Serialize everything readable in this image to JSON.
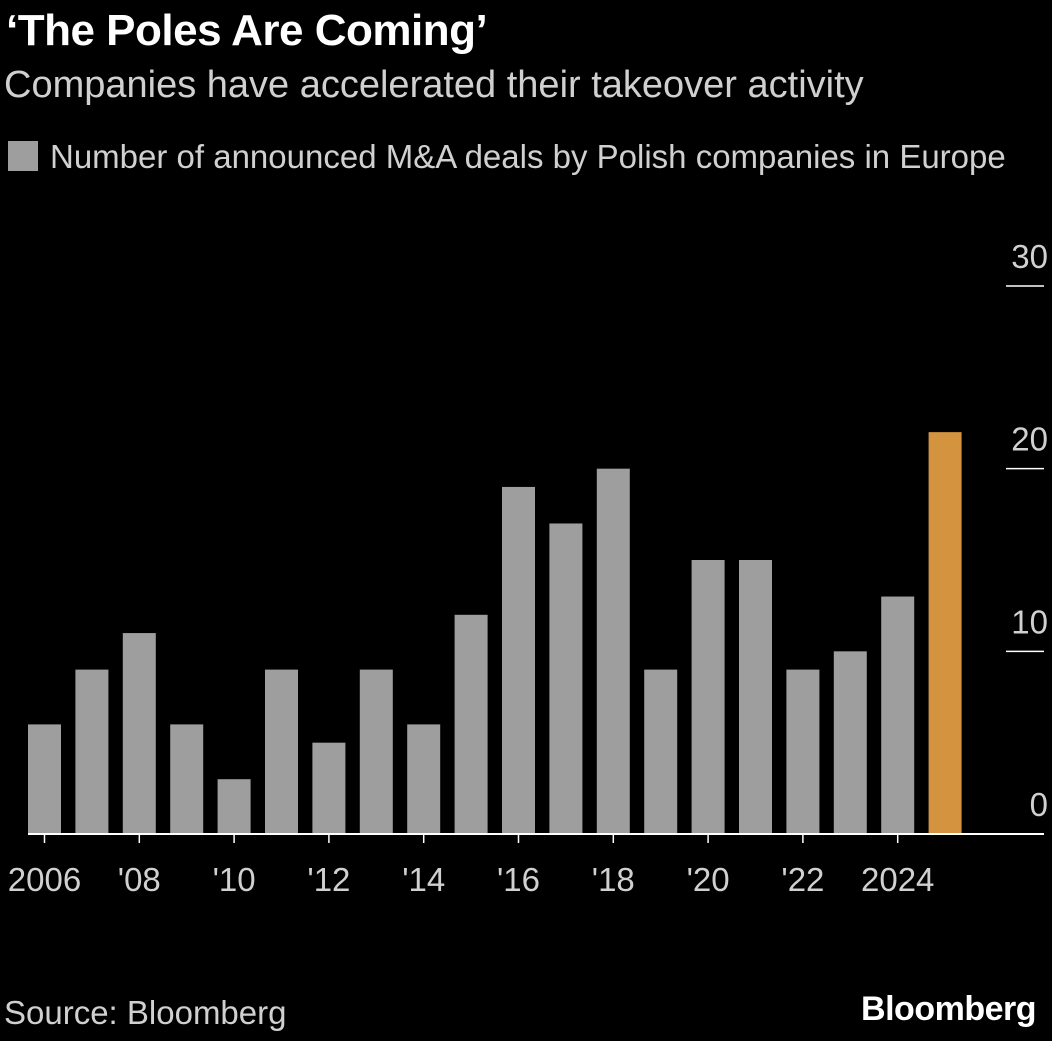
{
  "header": {
    "title": "‘The Poles Are Coming’",
    "subtitle": "Companies have accelerated their takeover activity"
  },
  "footer": {
    "source": "Source: Bloomberg",
    "brand": "Bloomberg"
  },
  "colors": {
    "bar": "#9e9e9e",
    "highlight": "#d4933f",
    "axis": "#ffffff",
    "background": "#000000"
  },
  "chart_data": {
    "type": "bar",
    "title": "‘The Poles Are Coming’",
    "subtitle": "Companies have accelerated their takeover activity",
    "ylim": [
      0,
      30
    ],
    "yticks": [
      0,
      10,
      20,
      30
    ],
    "y_axis_side": "right",
    "grid": false,
    "legend_placement": "top-left",
    "categories": [
      "2006",
      "2007",
      "2008",
      "2009",
      "2010",
      "2011",
      "2012",
      "2013",
      "2014",
      "2015",
      "2016",
      "2017",
      "2018",
      "2019",
      "2020",
      "2021",
      "2022",
      "2023",
      "2024",
      "2025"
    ],
    "x_tick_labels": [
      "2006",
      "'08",
      "'10",
      "'12",
      "'14",
      "'16",
      "'18",
      "'20",
      "'22",
      "2024"
    ],
    "series": [
      {
        "name": "Number of announced M&A deals by Polish companies in Europe",
        "values": [
          6,
          9,
          11,
          6,
          3,
          9,
          5,
          9,
          6,
          12,
          19,
          17,
          20,
          9,
          15,
          15,
          9,
          10,
          13,
          22
        ]
      }
    ],
    "highlight_index": 19
  }
}
